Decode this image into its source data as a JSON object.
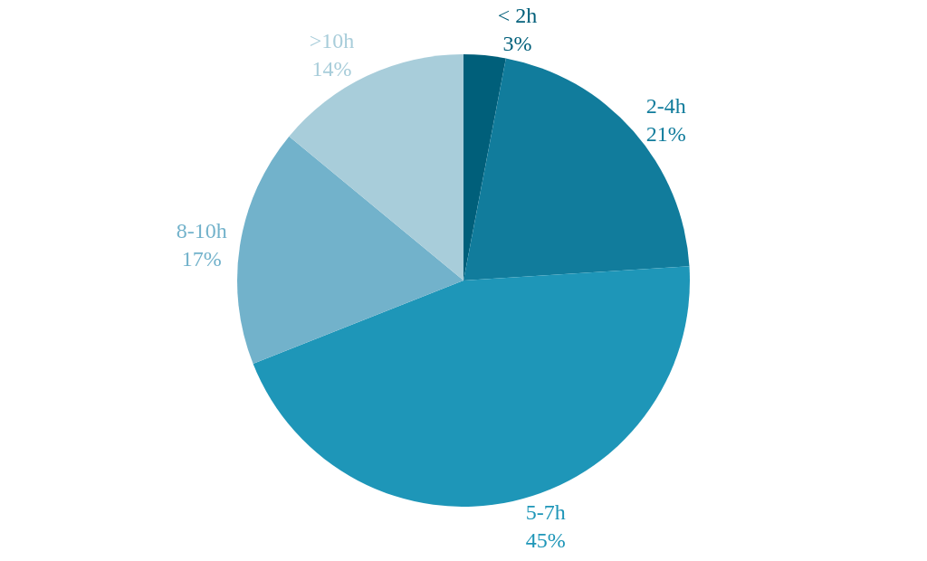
{
  "chart_data": {
    "type": "pie",
    "categories": [
      "< 2h",
      "2-4h",
      "5-7h",
      "8-10h",
      ">10h"
    ],
    "values": [
      3,
      21,
      45,
      17,
      14
    ],
    "value_labels": [
      "3%",
      "21%",
      "45%",
      "17%",
      "14%"
    ],
    "colors": [
      "#005f7a",
      "#117c9c",
      "#1e96b8",
      "#72b2cb",
      "#a8cdda"
    ],
    "legend": false
  }
}
